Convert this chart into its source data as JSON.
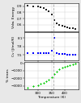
{
  "temp": [
    260,
    280,
    300,
    310,
    320,
    330,
    340,
    350,
    360,
    370,
    380,
    390,
    400,
    410,
    420,
    430,
    440
  ],
  "vdw": [
    0.91,
    0.9,
    0.89,
    0.88,
    0.87,
    0.85,
    0.82,
    0.76,
    0.67,
    0.62,
    0.6,
    0.58,
    0.57,
    0.56,
    0.55,
    0.54,
    0.53
  ],
  "cv": [
    7.55,
    7.55,
    7.55,
    7.55,
    7.56,
    7.56,
    7.57,
    7.65,
    8.1,
    7.55,
    7.52,
    7.52,
    7.52,
    7.51,
    7.51,
    7.5,
    7.5
  ],
  "trans": [
    -3200,
    -3000,
    -2900,
    -2700,
    -2600,
    -2400,
    -2200,
    -1900,
    -1400,
    -1100,
    -800,
    -600,
    -500,
    -400,
    -300,
    -200,
    -100
  ],
  "vline_x": 358,
  "xlim": [
    248,
    452
  ],
  "vdw_ylim": [
    0.5,
    0.95
  ],
  "vdw_yticks": [
    0.6,
    0.7,
    0.8,
    0.9
  ],
  "cv_ylim": [
    7.3,
    8.3
  ],
  "cv_yticks": [
    7.5,
    7.8,
    8.1
  ],
  "trans_ylim": [
    -3500,
    200
  ],
  "trans_yticks": [
    -3000,
    -2000,
    -1000,
    0
  ],
  "xticks": [
    300,
    350,
    400
  ],
  "xlabel": "Temperature (K)",
  "ylabel_vdw": "Vdw. Energy",
  "ylabel_cv": "Cv (J/mol/K)",
  "ylabel_trans": "% trans",
  "marker_color_vdw": "#222222",
  "marker_color_cv": "#0000ff",
  "marker_color_trans": "#00cc00",
  "dashed_color": "#aaaaaa",
  "bg_color": "#e8e8e8",
  "panel_bg": "#ffffff",
  "grid_color": "#cccccc"
}
